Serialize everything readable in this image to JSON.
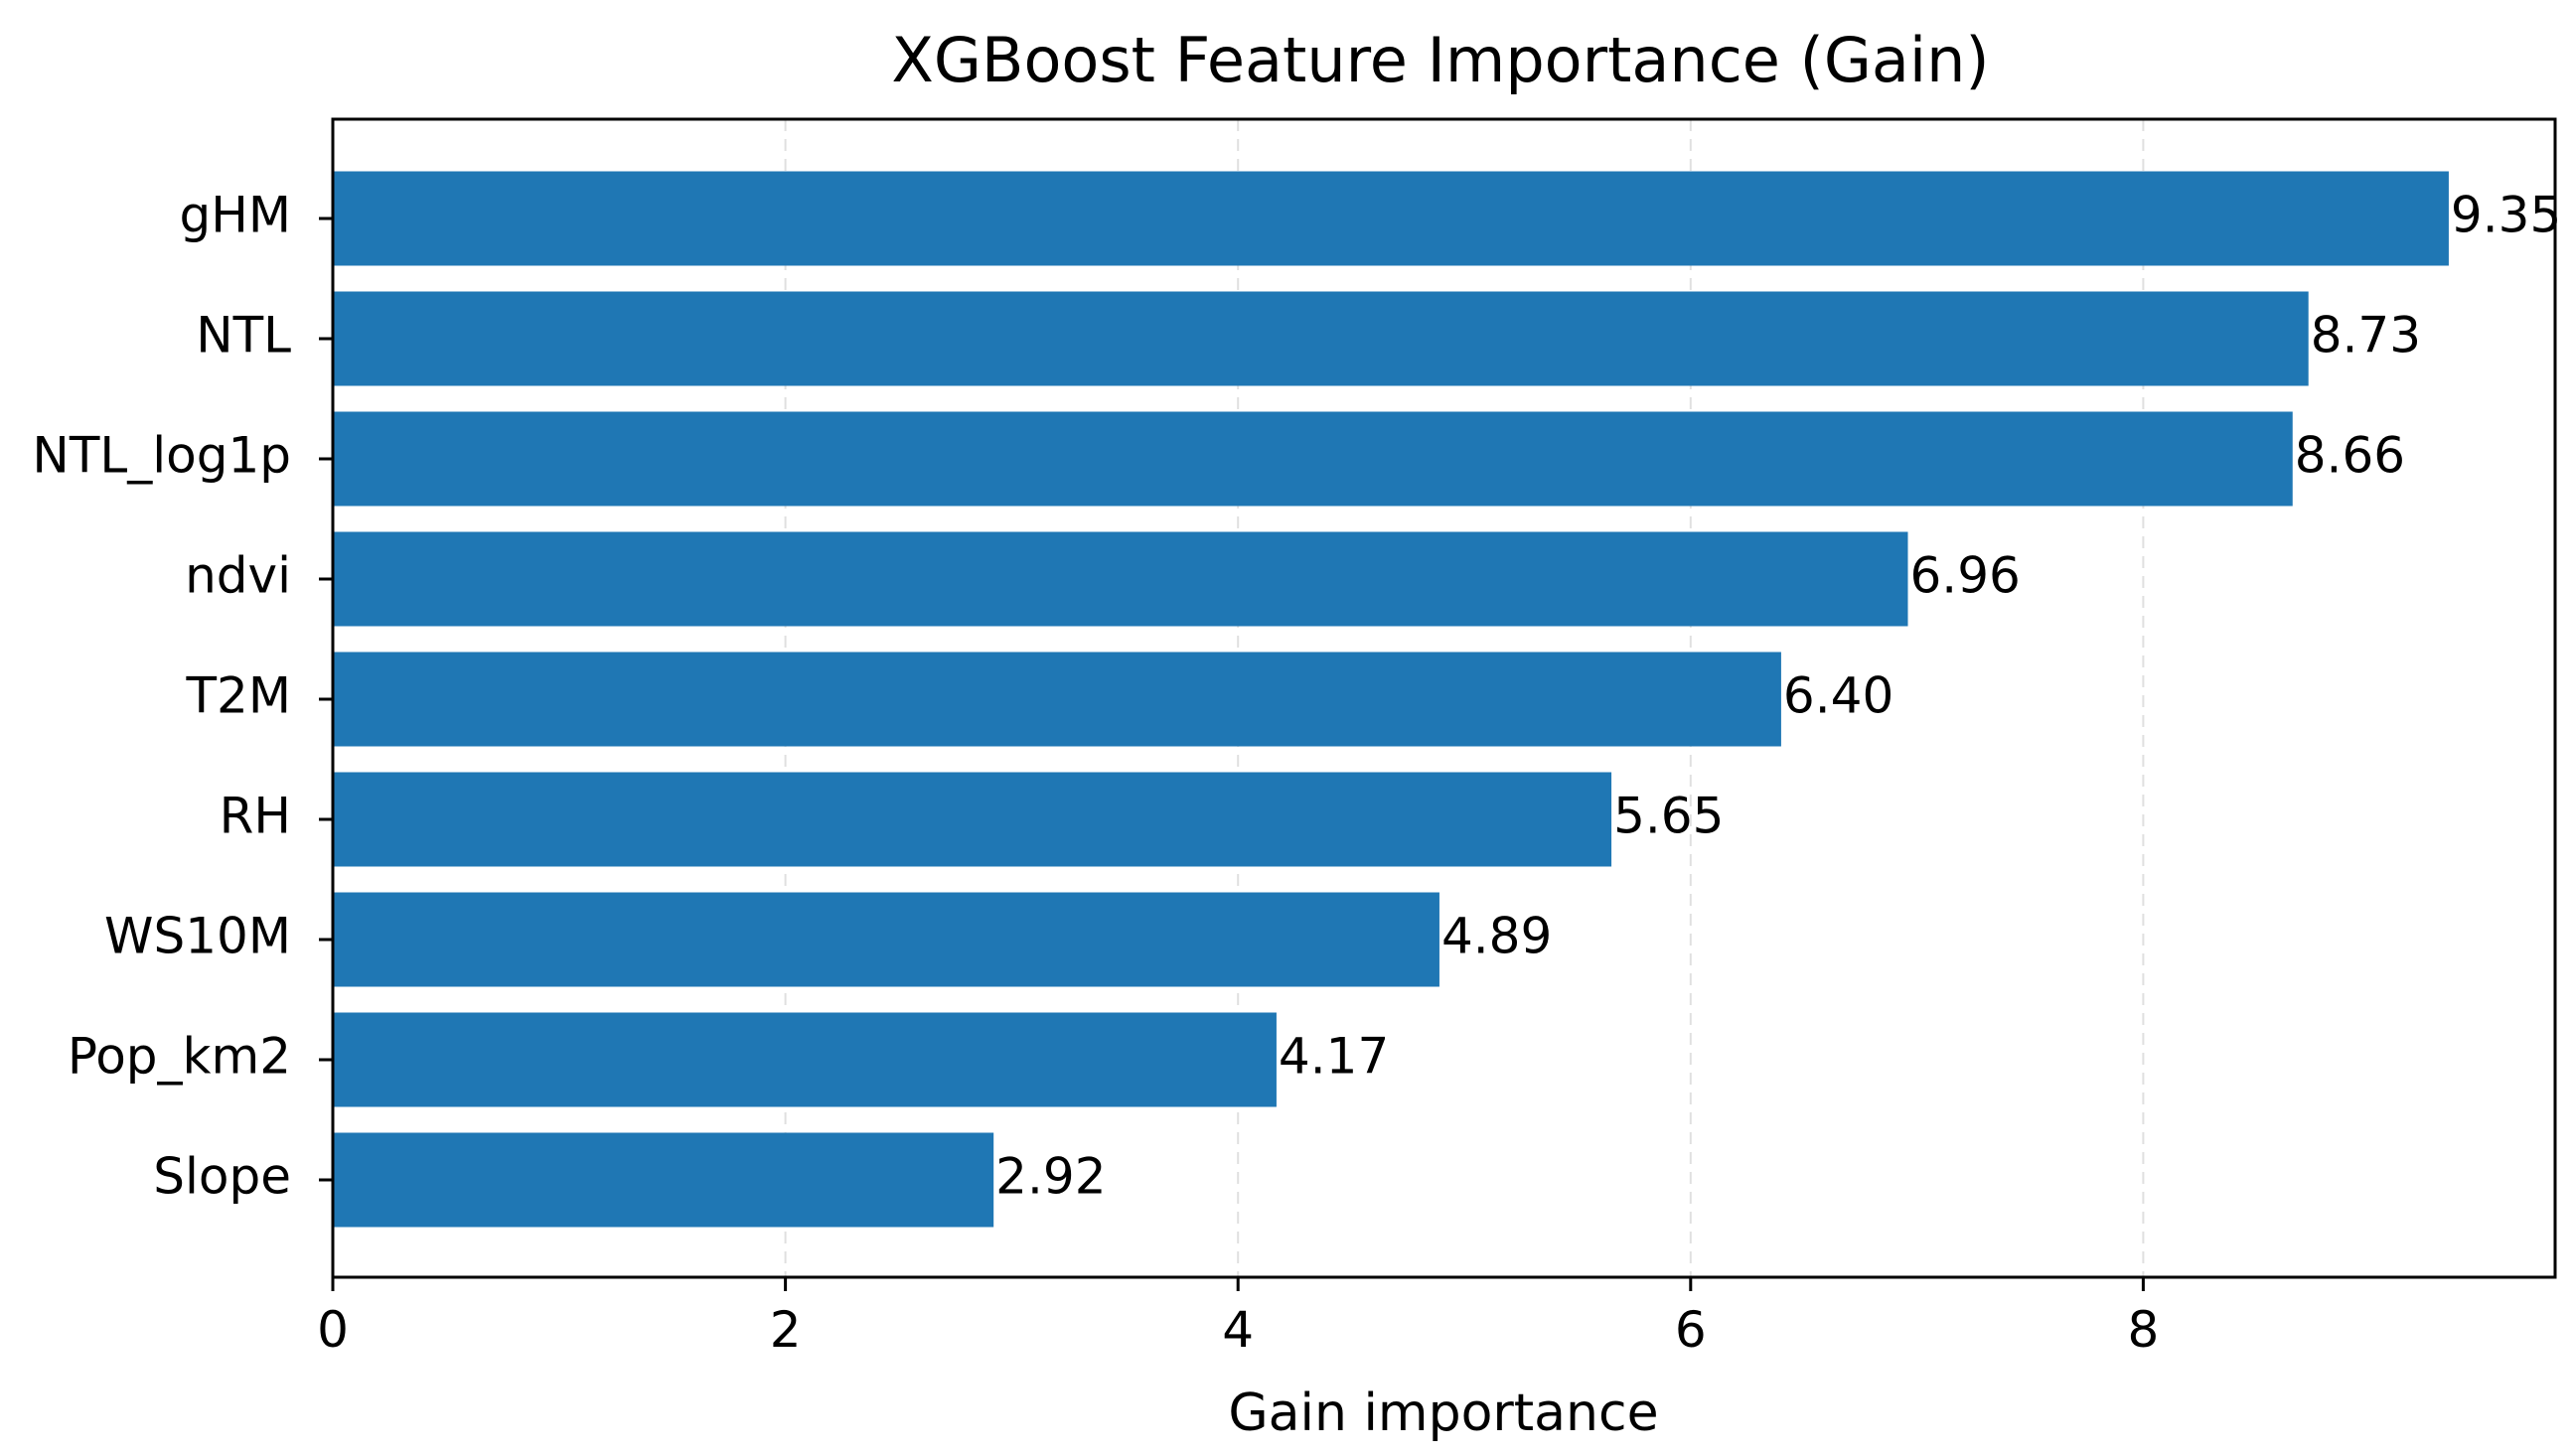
{
  "chart_data": {
    "type": "bar",
    "orientation": "horizontal",
    "title": "XGBoost Feature Importance (Gain)",
    "xlabel": "Gain importance",
    "ylabel": "",
    "categories": [
      "gHM",
      "NTL",
      "NTL_log1p",
      "ndvi",
      "T2M",
      "RH",
      "WS10M",
      "Pop_km2",
      "Slope"
    ],
    "values": [
      9.35,
      8.73,
      8.66,
      6.96,
      6.4,
      5.65,
      4.89,
      4.17,
      2.92
    ],
    "value_labels": [
      "9.35",
      "8.73",
      "8.66",
      "6.96",
      "6.40",
      "5.65",
      "4.89",
      "4.17",
      "2.92"
    ],
    "xlim": [
      0,
      9.82
    ],
    "xticks": [
      0,
      2,
      4,
      6,
      8
    ],
    "xtick_labels": [
      "0",
      "2",
      "4",
      "6",
      "8"
    ],
    "grid": "x-axis dashed",
    "legend": "none",
    "bar_color": "#1f77b4",
    "grid_color": "#e0e0e0"
  }
}
